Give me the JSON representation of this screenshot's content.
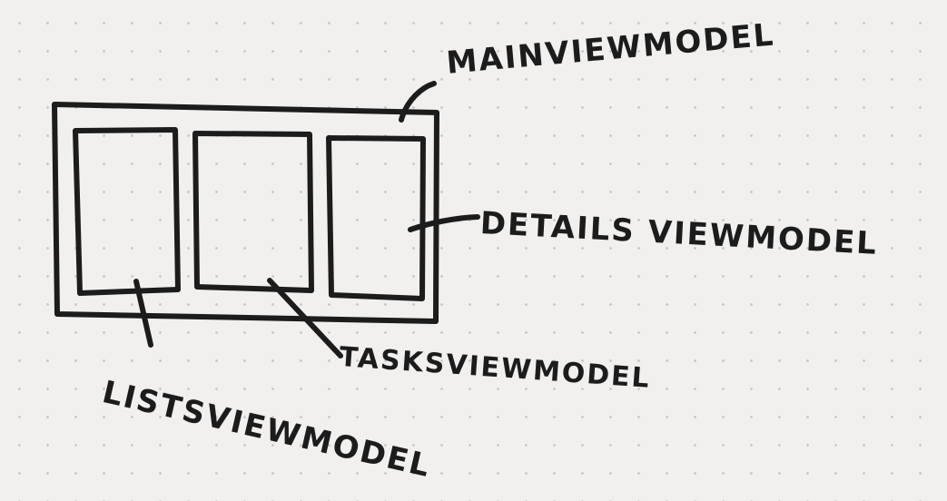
{
  "diagram": {
    "labels": {
      "main": "MAINVIEWMODEL",
      "details": "DETAILS VIEWMODEL",
      "tasks": "TASKSVIEWMODEL",
      "lists": "LISTSVIEWMODEL"
    }
  }
}
